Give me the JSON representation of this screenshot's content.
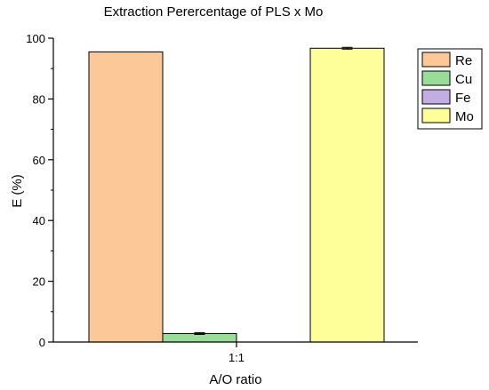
{
  "chart_data": {
    "type": "bar",
    "title": "Extraction Perercentage of PLS x Mo",
    "xlabel": "A/O ratio",
    "ylabel": "E (%)",
    "categories": [
      "1:1"
    ],
    "ylim": [
      0,
      100
    ],
    "yticks": [
      0,
      20,
      40,
      60,
      80,
      100
    ],
    "grid": false,
    "legend_position": "top-right",
    "series": [
      {
        "name": "Re",
        "values": [
          95.5
        ],
        "error": [
          0
        ],
        "color": "#FDC898"
      },
      {
        "name": "Cu",
        "values": [
          2.8
        ],
        "error": [
          0.3
        ],
        "color": "#99DD99"
      },
      {
        "name": "Fe",
        "values": [
          0
        ],
        "error": [
          0
        ],
        "color": "#C2AEE2"
      },
      {
        "name": "Mo",
        "values": [
          96.7
        ],
        "error": [
          0.3
        ],
        "color": "#FFFF99"
      }
    ]
  }
}
